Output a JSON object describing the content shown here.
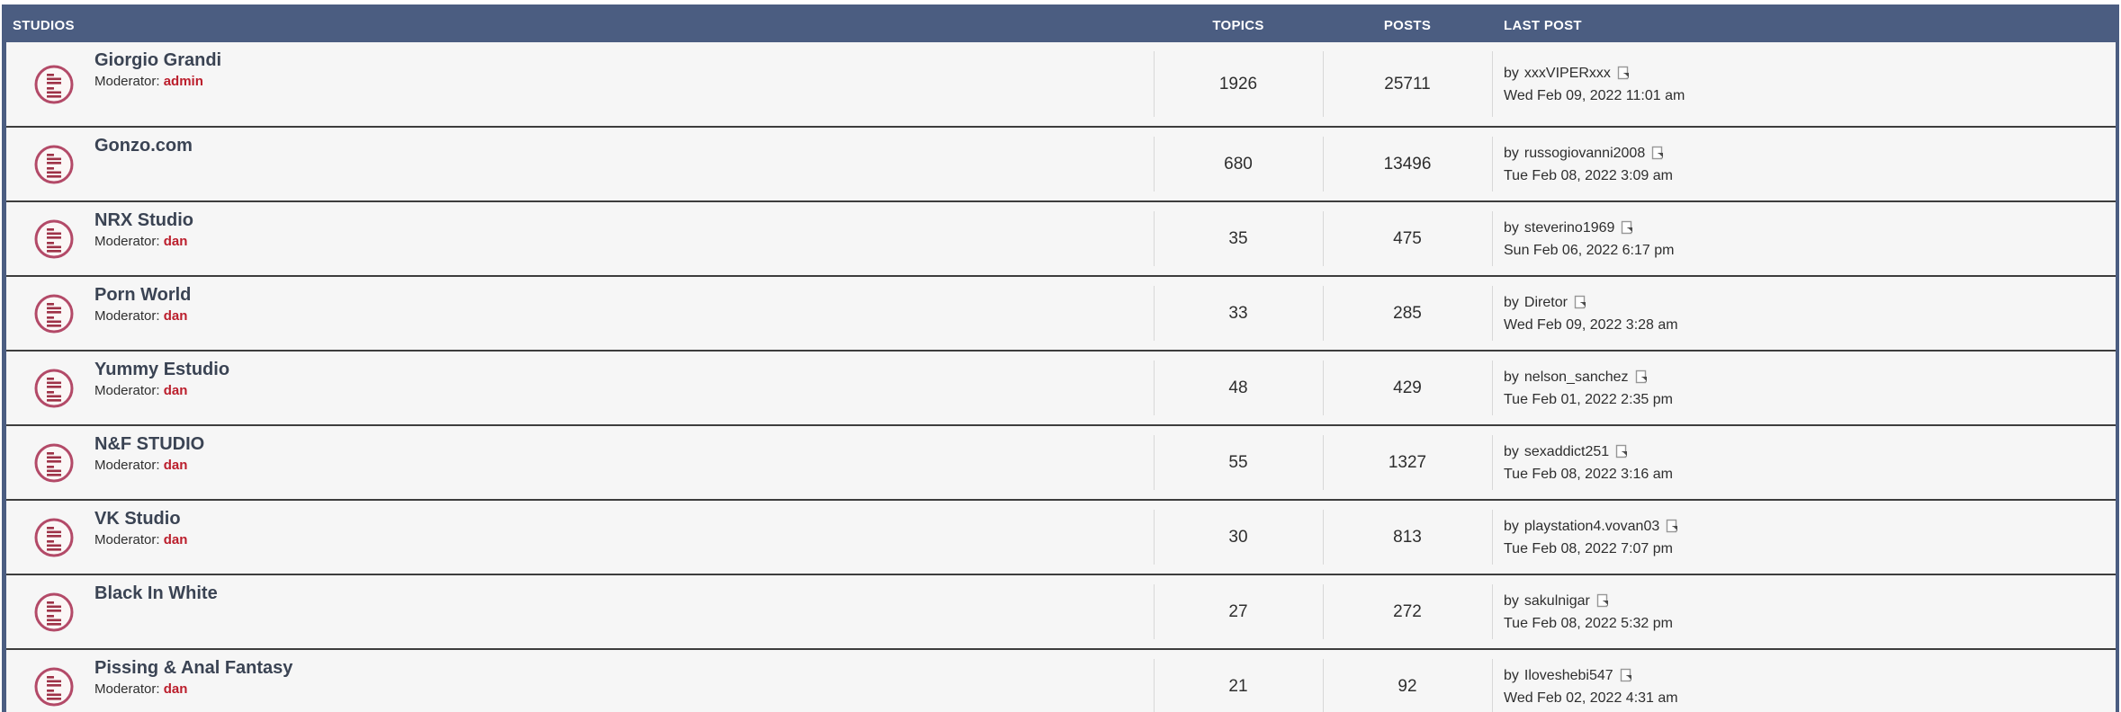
{
  "header": {
    "studios": "STUDIOS",
    "topics": "TOPICS",
    "posts": "POSTS",
    "last_post": "LAST POST"
  },
  "labels": {
    "moderator": "Moderator:",
    "by": "by"
  },
  "colors": {
    "header_bg": "#4b5d81",
    "row_bg": "#f6f6f6",
    "row_separator": "#3d3d3d",
    "title_text": "#3a4353",
    "moderator_red": "#bb1e2c",
    "icon_ring": "#b34a68",
    "icon_bars": "#9e3247"
  },
  "rows": [
    {
      "title": "Giorgio Grandi",
      "moderator": "admin",
      "topics": "1926",
      "posts": "25711",
      "last_poster": "xxxVIPERxxx",
      "last_time": "Wed Feb 09, 2022 11:01 am"
    },
    {
      "title": "Gonzo.com",
      "moderator": "",
      "topics": "680",
      "posts": "13496",
      "last_poster": "russogiovanni2008",
      "last_time": "Tue Feb 08, 2022 3:09 am"
    },
    {
      "title": "NRX Studio",
      "moderator": "dan",
      "topics": "35",
      "posts": "475",
      "last_poster": "steverino1969",
      "last_time": "Sun Feb 06, 2022 6:17 pm"
    },
    {
      "title": "Porn World",
      "moderator": "dan",
      "topics": "33",
      "posts": "285",
      "last_poster": "Diretor",
      "last_time": "Wed Feb 09, 2022 3:28 am"
    },
    {
      "title": "Yummy Estudio",
      "moderator": "dan",
      "topics": "48",
      "posts": "429",
      "last_poster": "nelson_sanchez",
      "last_time": "Tue Feb 01, 2022 2:35 pm"
    },
    {
      "title": "N&F STUDIO",
      "moderator": "dan",
      "topics": "55",
      "posts": "1327",
      "last_poster": "sexaddict251",
      "last_time": "Tue Feb 08, 2022 3:16 am"
    },
    {
      "title": "VK Studio",
      "moderator": "dan",
      "topics": "30",
      "posts": "813",
      "last_poster": "playstation4.vovan03",
      "last_time": "Tue Feb 08, 2022 7:07 pm"
    },
    {
      "title": "Black In White",
      "moderator": "",
      "topics": "27",
      "posts": "272",
      "last_poster": "sakulnigar",
      "last_time": "Tue Feb 08, 2022 5:32 pm"
    },
    {
      "title": "Pissing & Anal Fantasy",
      "moderator": "dan",
      "topics": "21",
      "posts": "92",
      "last_poster": "Iloveshebi547",
      "last_time": "Wed Feb 02, 2022 4:31 am"
    }
  ]
}
